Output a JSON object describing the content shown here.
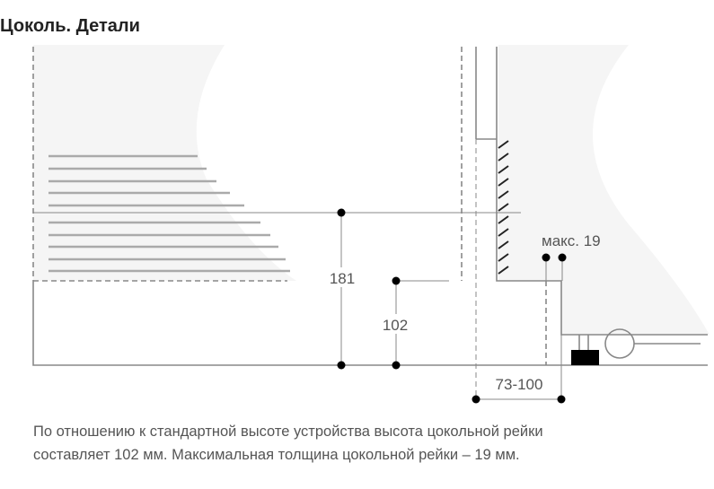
{
  "title": "Цоколь. Детали",
  "dimensions": {
    "height_total": "181",
    "plinth_height": "102",
    "max_thickness": "макс. 19",
    "depth_range": "73-100"
  },
  "description": {
    "line1": "По отношению к стандартной высоте устройства высота цокольной рейки",
    "line2": "составляет 102 мм. Максимальная толщина цокольной рейки – 19 мм."
  },
  "colors": {
    "line": "#888888",
    "dot": "#000000",
    "fill": "#f4f4f4"
  }
}
